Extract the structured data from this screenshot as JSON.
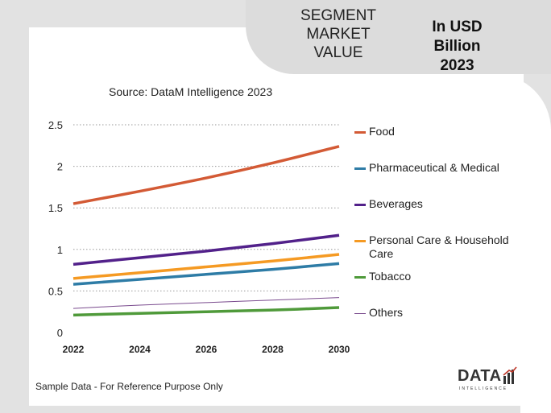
{
  "header": {
    "segment_title_line1": "SEGMENT",
    "segment_title_line2": "MARKET",
    "segment_title_line3": "VALUE",
    "units_line1": "In USD Billion",
    "units_line2": "2023"
  },
  "source_text": "Source: DataM Intelligence  2023",
  "footer_text": "Sample Data - For Reference Purpose Only",
  "logo": {
    "text": "DATA",
    "sub": "INTELLIGENCE"
  },
  "colors": {
    "food": "#d35a35",
    "pharma": "#2e7ca6",
    "beverages": "#52218a",
    "personal_care": "#f59a23",
    "tobacco": "#4f9a3a",
    "others": "#7a4b8e",
    "grid": "#9a9a9a",
    "logo_red": "#c0392b"
  },
  "chart_data": {
    "type": "line",
    "title": "",
    "xlabel": "",
    "ylabel": "",
    "x": [
      2022,
      2024,
      2026,
      2028,
      2030
    ],
    "xticks": [
      "2022",
      "2024",
      "2026",
      "2028",
      "2030"
    ],
    "yticks": [
      "0",
      "0.5",
      "1",
      "1.5",
      "2",
      "2.5"
    ],
    "ylim": [
      0,
      2.5
    ],
    "xlim": [
      2022,
      2030
    ],
    "grid": true,
    "legend_position": "right",
    "series": [
      {
        "key": "food",
        "name": "Food",
        "values": [
          1.55,
          1.7,
          1.86,
          2.04,
          2.24
        ],
        "width": 3.5
      },
      {
        "key": "pharma",
        "name": "Pharmaceutical & Medical",
        "values": [
          0.58,
          0.64,
          0.7,
          0.76,
          0.83
        ],
        "width": 3.5
      },
      {
        "key": "beverages",
        "name": "Beverages",
        "values": [
          0.82,
          0.9,
          0.98,
          1.07,
          1.17
        ],
        "width": 3.5
      },
      {
        "key": "personal_care",
        "name": "Personal Care & Household Care",
        "values": [
          0.65,
          0.72,
          0.79,
          0.86,
          0.94
        ],
        "width": 3.5
      },
      {
        "key": "tobacco",
        "name": "Tobacco",
        "values": [
          0.21,
          0.23,
          0.25,
          0.27,
          0.3
        ],
        "width": 3.5
      },
      {
        "key": "others",
        "name": "Others",
        "values": [
          0.29,
          0.33,
          0.36,
          0.39,
          0.42
        ],
        "width": 1
      }
    ]
  }
}
